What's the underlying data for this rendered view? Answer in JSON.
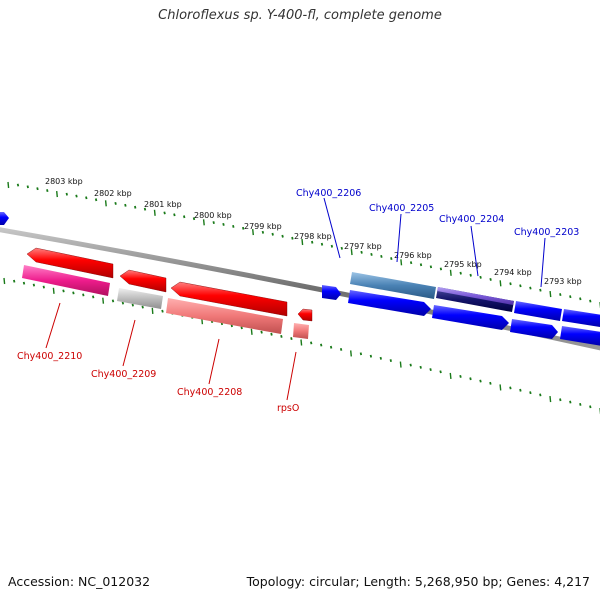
{
  "title": "Chloroflexus sp. Y-400-fl, complete genome",
  "footer": {
    "accession": "Accession: NC_012032",
    "topology": "Topology: circular; Length: 5,268,950 bp; Genes: 4,217"
  },
  "kbp_labels": [
    "2803 kbp",
    "2802 kbp",
    "2801 kbp",
    "2800 kbp",
    "2799 kbp",
    "2798 kbp",
    "2797 kbp",
    "2796 kbp",
    "2795 kbp",
    "2794 kbp",
    "2793 kbp"
  ],
  "genes_top": [
    {
      "name": "Chy400_2206",
      "color": "#0000cc"
    },
    {
      "name": "Chy400_2205",
      "color": "#0000cc"
    },
    {
      "name": "Chy400_2204",
      "color": "#0000cc"
    },
    {
      "name": "Chy400_2203",
      "color": "#0000cc"
    }
  ],
  "genes_bottom": [
    {
      "name": "Chy400_2210",
      "color": "#cc0000"
    },
    {
      "name": "Chy400_2209",
      "color": "#cc0000"
    },
    {
      "name": "Chy400_2208",
      "color": "#cc0000"
    },
    {
      "name": "rpsO",
      "color": "#cc0000"
    }
  ]
}
